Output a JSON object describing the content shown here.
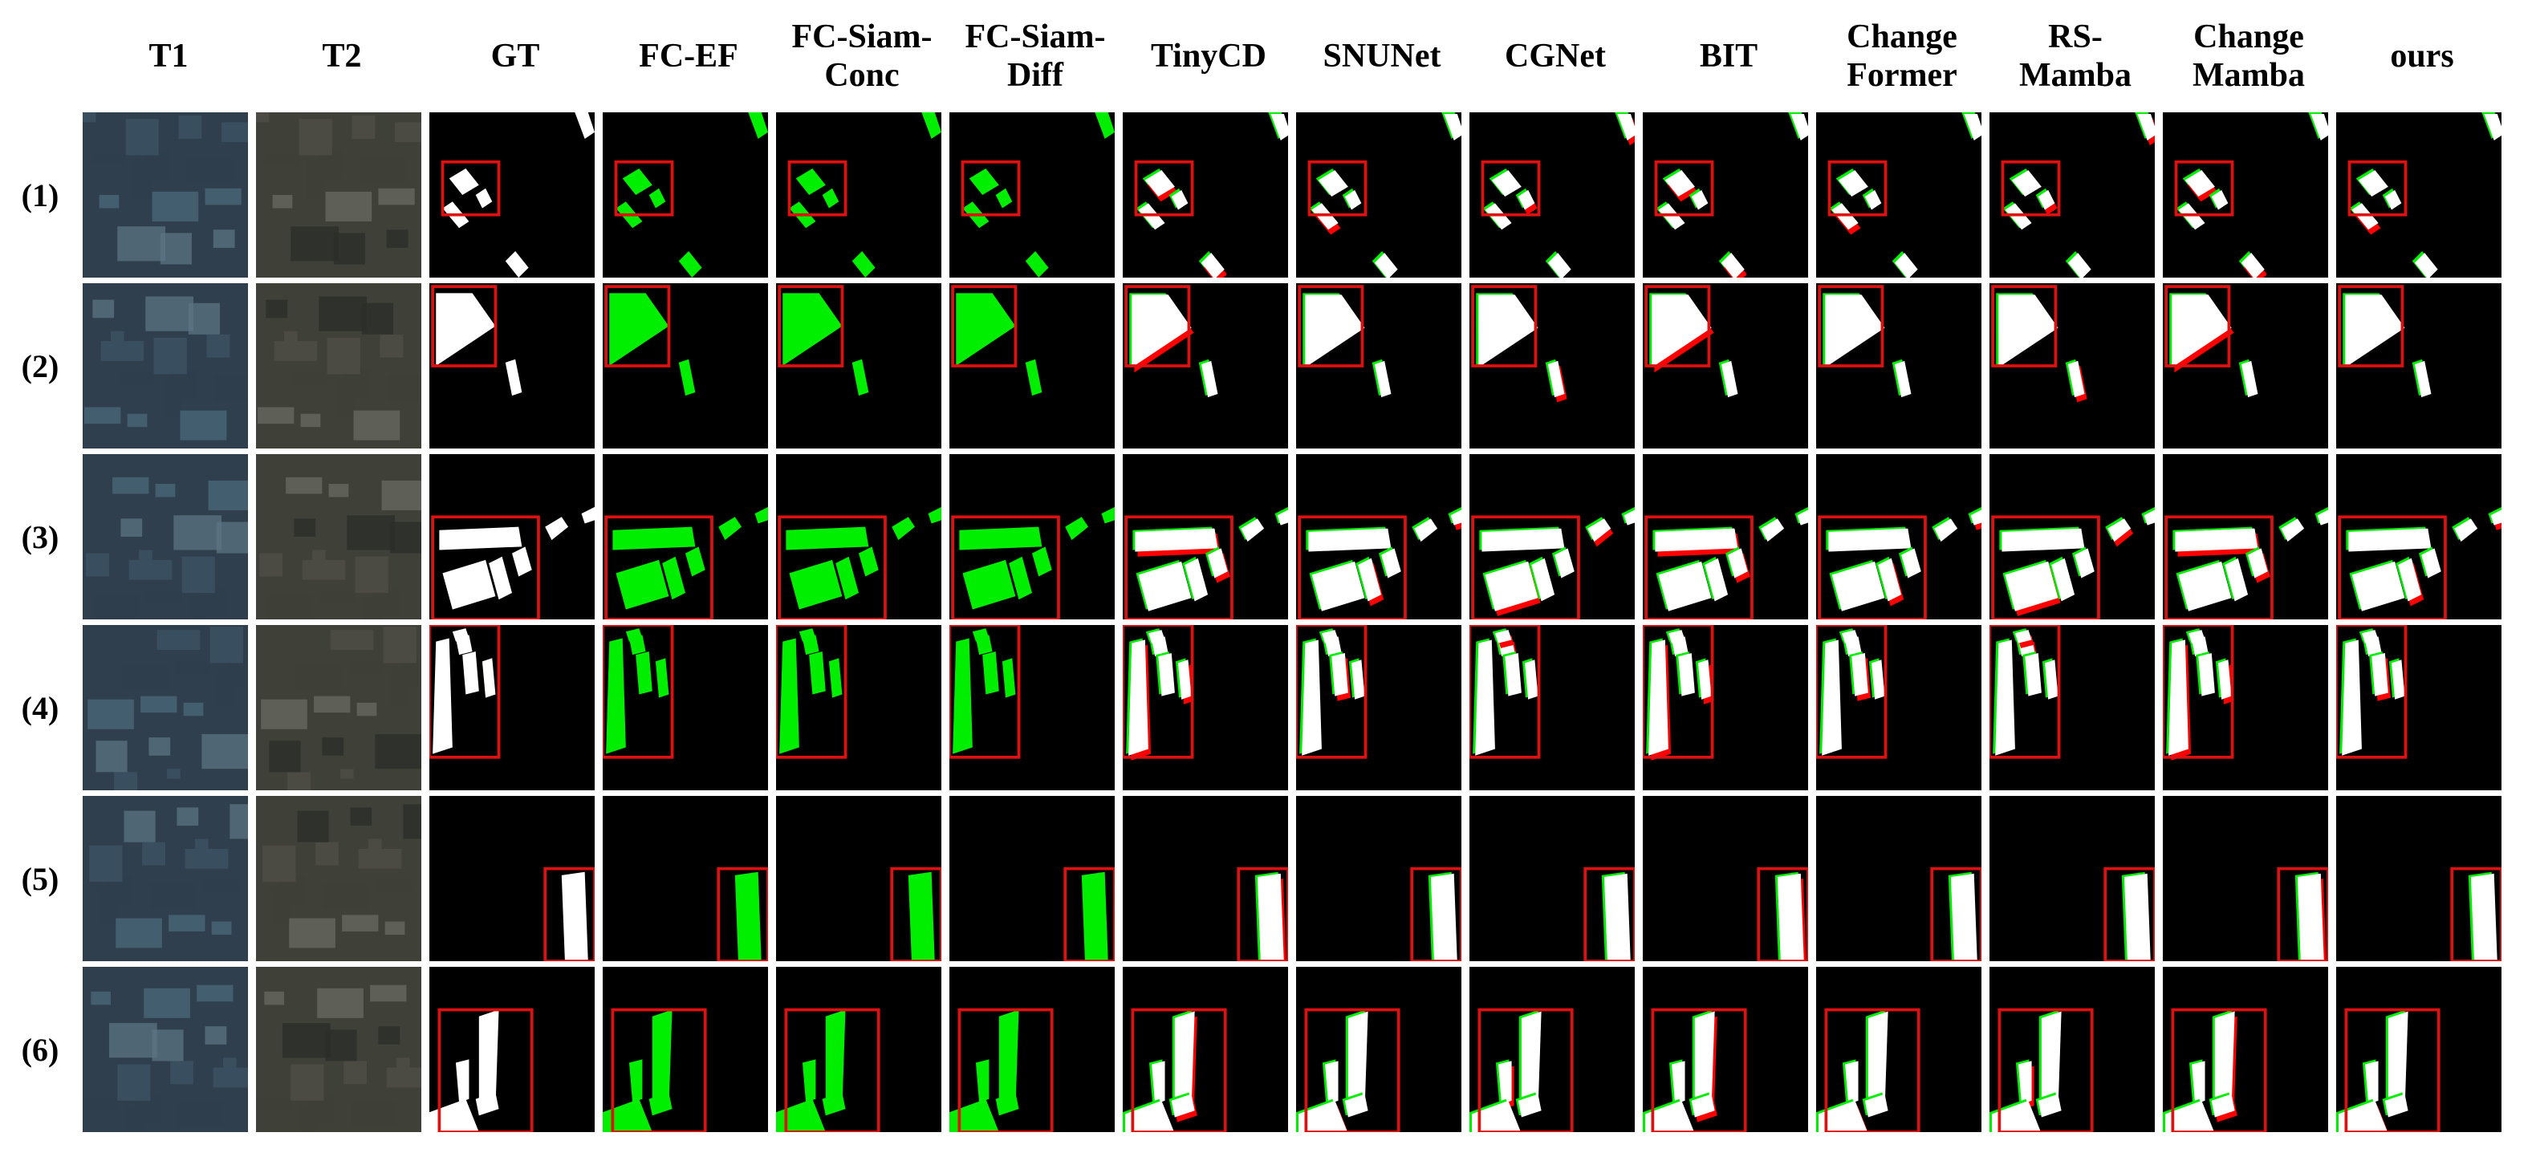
{
  "figure": {
    "column_headers": [
      "T1",
      "T2",
      "GT",
      "FC-EF",
      "FC-Siam-\nConc",
      "FC-Siam-\nDiff",
      "TinyCD",
      "SNUNet",
      "CGNet",
      "BIT",
      "Change\nFormer",
      "RS-\nMamba",
      "Change\nMamba",
      "ours"
    ],
    "row_labels": [
      "(1)",
      "(2)",
      "(3)",
      "(4)",
      "(5)",
      "(6)"
    ]
  },
  "colors": {
    "background": "#000000",
    "true_positive": "#ffffff",
    "false_negative": "#00ee00",
    "false_positive": "#ff0000",
    "highlight_box": "#e01010",
    "separator": "#ffffff"
  }
}
